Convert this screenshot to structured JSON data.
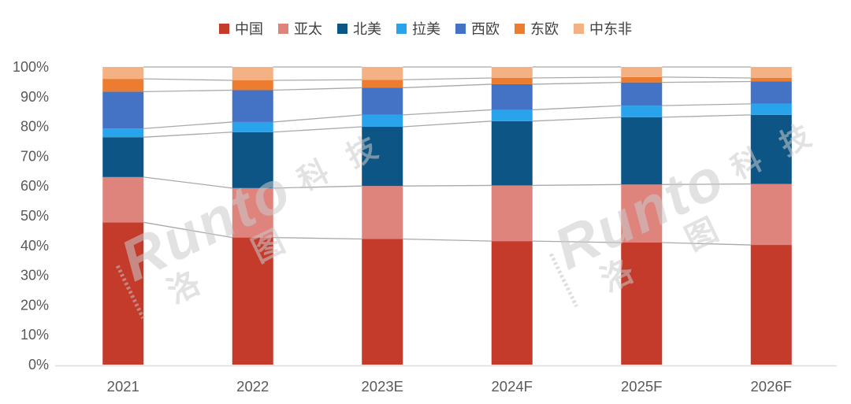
{
  "chart_data": {
    "type": "bar",
    "subtype": "stacked-100-percent-column",
    "title": "",
    "xlabel": "",
    "ylabel": "",
    "unit": "%",
    "legend_position": "top",
    "grid": false,
    "series_connector_lines": true,
    "categories": [
      "2021",
      "2022",
      "2023E",
      "2024F",
      "2025F",
      "2026F"
    ],
    "series": [
      {
        "name": "中国",
        "color": "#C43A2B",
        "values": [
          47.8,
          42.7,
          42.2,
          41.5,
          41.0,
          40.2
        ]
      },
      {
        "name": "亚太",
        "color": "#DF837D",
        "values": [
          15.2,
          16.6,
          17.8,
          18.7,
          19.5,
          20.5
        ]
      },
      {
        "name": "北美",
        "color": "#0D5585",
        "values": [
          13.4,
          18.8,
          19.9,
          21.6,
          22.6,
          23.2
        ]
      },
      {
        "name": "拉美",
        "color": "#29A3EC",
        "values": [
          2.9,
          3.4,
          4.0,
          3.8,
          3.9,
          3.7
        ]
      },
      {
        "name": "西欧",
        "color": "#4472C4",
        "values": [
          12.4,
          10.7,
          9.1,
          8.6,
          7.8,
          7.5
        ]
      },
      {
        "name": "东欧",
        "color": "#EC7C2F",
        "values": [
          4.3,
          3.3,
          2.7,
          2.1,
          1.8,
          1.2
        ]
      },
      {
        "name": "中东非",
        "color": "#F4B183",
        "values": [
          4.0,
          4.5,
          4.3,
          3.7,
          3.4,
          3.7
        ]
      }
    ],
    "y_axis": {
      "min": 0,
      "max": 100,
      "tick_labels": [
        "0%",
        "10%",
        "20%",
        "30%",
        "40%",
        "50%",
        "60%",
        "70%",
        "80%",
        "90%",
        "100%"
      ],
      "label_color": "#595959"
    },
    "x_axis": {
      "label_color": "#595959",
      "line_color": "#DDDDDD"
    },
    "connector_line_color": "#A9A9A9"
  },
  "watermark": {
    "brand": "Runto",
    "cn_right": "科 技",
    "cn_bottom": "洛 图",
    "full_name": "Runto 洛图科技"
  }
}
